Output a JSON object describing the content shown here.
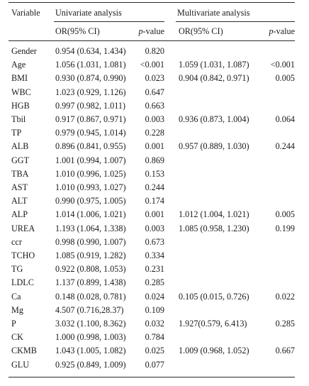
{
  "table": {
    "headers": {
      "variable": "Variable",
      "univariate": "Univariate analysis",
      "multivariate": "Multivariate analysis",
      "or_ci": "OR(95% CI)",
      "p_prefix": "p",
      "p_suffix": "-value"
    },
    "rows": [
      {
        "variable": "Gender",
        "uni_or": "0.954 (0.634, 1.434)",
        "uni_p": "0.820",
        "multi_or": "",
        "multi_p": ""
      },
      {
        "variable": "Age",
        "uni_or": "1.056 (1.031, 1.081)",
        "uni_p": "<0.001",
        "multi_or": "1.059 (1.031, 1.087)",
        "multi_p": "<0.001"
      },
      {
        "variable": "BMI",
        "uni_or": "0.930 (0.874, 0.990)",
        "uni_p": "0.023",
        "multi_or": "0.904 (0.842, 0.971)",
        "multi_p": "0.005"
      },
      {
        "variable": "WBC",
        "uni_or": "1.023 (0.929, 1.126)",
        "uni_p": "0.647",
        "multi_or": "",
        "multi_p": ""
      },
      {
        "variable": "HGB",
        "uni_or": "0.997 (0.982, 1.011)",
        "uni_p": "0.663",
        "multi_or": "",
        "multi_p": ""
      },
      {
        "variable": "Tbil",
        "uni_or": "0.917 (0.867, 0.971)",
        "uni_p": "0.003",
        "multi_or": "0.936 (0.873, 1.004)",
        "multi_p": "0.064"
      },
      {
        "variable": "TP",
        "uni_or": "0.979 (0.945, 1.014)",
        "uni_p": "0.228",
        "multi_or": "",
        "multi_p": ""
      },
      {
        "variable": "ALB",
        "uni_or": "0.896 (0.841, 0.955)",
        "uni_p": "0.001",
        "multi_or": "0.957 (0.889, 1.030)",
        "multi_p": "0.244"
      },
      {
        "variable": "GGT",
        "uni_or": "1.001 (0.994, 1.007)",
        "uni_p": "0.869",
        "multi_or": "",
        "multi_p": ""
      },
      {
        "variable": "TBA",
        "uni_or": "1.010 (0.996, 1.025)",
        "uni_p": "0.153",
        "multi_or": "",
        "multi_p": ""
      },
      {
        "variable": "AST",
        "uni_or": "1.010 (0.993, 1.027)",
        "uni_p": "0.244",
        "multi_or": "",
        "multi_p": ""
      },
      {
        "variable": "ALT",
        "uni_or": "0.990 (0.975, 1.005)",
        "uni_p": "0.174",
        "multi_or": "",
        "multi_p": ""
      },
      {
        "variable": "ALP",
        "uni_or": "1.014 (1.006, 1.021)",
        "uni_p": "0.001",
        "multi_or": "1.012 (1.004, 1.021)",
        "multi_p": "0.005"
      },
      {
        "variable": "UREA",
        "uni_or": "1.193 (1.064, 1.338)",
        "uni_p": "0.003",
        "multi_or": "1.085 (0.958, 1.230)",
        "multi_p": "0.199"
      },
      {
        "variable": "ccr",
        "uni_or": "0.998 (0.990, 1.007)",
        "uni_p": "0.673",
        "multi_or": "",
        "multi_p": ""
      },
      {
        "variable": "TCHO",
        "uni_or": "1.085 (0.919, 1.282)",
        "uni_p": "0.334",
        "multi_or": "",
        "multi_p": ""
      },
      {
        "variable": "TG",
        "uni_or": "0.922 (0.808, 1.053)",
        "uni_p": "0.231",
        "multi_or": "",
        "multi_p": ""
      },
      {
        "variable": "LDLC",
        "uni_or": "1.137 (0.899, 1.438)",
        "uni_p": "0.285",
        "multi_or": "",
        "multi_p": ""
      },
      {
        "variable": "Ca",
        "uni_or": "0.148 (0.028, 0.781)",
        "uni_p": "0.024",
        "multi_or": "0.105 (0.015, 0.726)",
        "multi_p": "0.022"
      },
      {
        "variable": "Mg",
        "uni_or": "4.507 (0.716,28.37)",
        "uni_p": "0.109",
        "multi_or": "",
        "multi_p": ""
      },
      {
        "variable": "P",
        "uni_or": "3.032 (1.100, 8.362)",
        "uni_p": "0.032",
        "multi_or": "1.927(0.579, 6.413)",
        "multi_p": "0.285"
      },
      {
        "variable": "CK",
        "uni_or": "1.000 (0.998, 1.003)",
        "uni_p": "0.784",
        "multi_or": "",
        "multi_p": ""
      },
      {
        "variable": "CKMB",
        "uni_or": "1.043 (1.005, 1.082)",
        "uni_p": "0.025",
        "multi_or": "1.009 (0.968, 1.052)",
        "multi_p": "0.667"
      },
      {
        "variable": "GLU",
        "uni_or": "0.925 (0.849, 1.009)",
        "uni_p": "0.077",
        "multi_or": "",
        "multi_p": ""
      }
    ]
  }
}
